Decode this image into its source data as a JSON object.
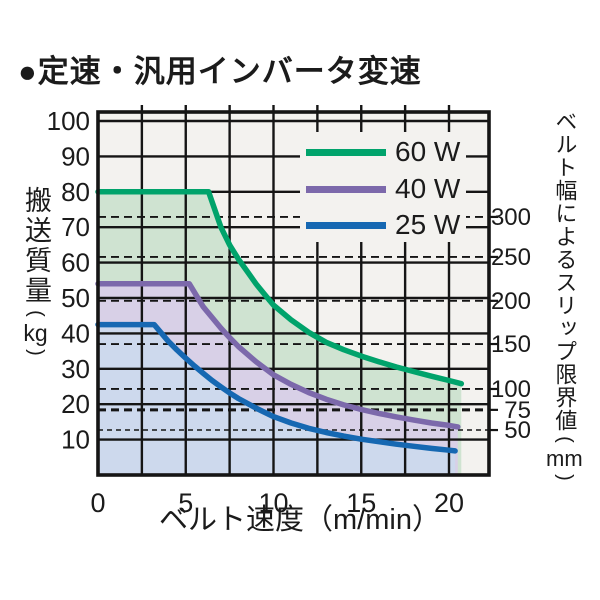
{
  "title": "●定速・汎用インバータ変速",
  "glyphs": {
    "paren_open": "(",
    "paren_close": ")"
  },
  "y_axis": {
    "label": "搬送質量",
    "unit": "kg",
    "ticks": [
      100,
      90,
      80,
      70,
      60,
      50,
      40,
      30,
      20,
      10
    ]
  },
  "x_axis": {
    "label": "ベルト速度（m/min）",
    "ticks": [
      0,
      5,
      10,
      15,
      20
    ]
  },
  "right_axis": {
    "label": "ベルト幅によるスリップ限界値",
    "unit": "mm",
    "ticks": [
      {
        "mm": 300,
        "kg": 72.9
      },
      {
        "mm": 250,
        "kg": 61.6
      },
      {
        "mm": 200,
        "kg": 49.2
      },
      {
        "mm": 150,
        "kg": 37.0
      },
      {
        "mm": 100,
        "kg": 24.3
      },
      {
        "mm": 75,
        "kg": 18.4
      },
      {
        "mm": 50,
        "kg": 12.7
      }
    ]
  },
  "legend": [
    {
      "label": "60 W",
      "color": "#00a36b"
    },
    {
      "label": "40 W",
      "color": "#7c69ab"
    },
    {
      "label": "25 W",
      "color": "#1668b2"
    }
  ],
  "colors": {
    "plot_bg": "#f3f2ef",
    "grid": "#151515",
    "text": "#1b1b1b"
  },
  "chart_data": {
    "type": "area",
    "title": "定速・汎用インバータ変速",
    "xlabel": "ベルト速度（m/min）",
    "ylabel": "搬送質量（kg）",
    "y2label": "ベルト幅によるスリップ限界値（mm）",
    "xlim": [
      0,
      22.3
    ],
    "ylim": [
      0,
      102.5
    ],
    "x_ticks": [
      0,
      5,
      10,
      15,
      20
    ],
    "x_grid_step": 2.5,
    "y_grid_step": 10,
    "grid": true,
    "legend_position": "top-right-inside",
    "series": [
      {
        "name": "60 W",
        "color": "#00a36b",
        "fill": "#cfe3d1",
        "points": [
          [
            0,
            80
          ],
          [
            6.3,
            80
          ],
          [
            7,
            70
          ],
          [
            7.5,
            65
          ],
          [
            8,
            61
          ],
          [
            8.5,
            57.5
          ],
          [
            9,
            54
          ],
          [
            9.5,
            51
          ],
          [
            10,
            48
          ],
          [
            11,
            43.8
          ],
          [
            12,
            40.3
          ],
          [
            13,
            37.5
          ],
          [
            14,
            35.4
          ],
          [
            15,
            33.6
          ],
          [
            16,
            32
          ],
          [
            17,
            30.5
          ],
          [
            18,
            29.2
          ],
          [
            19,
            27.9
          ],
          [
            20,
            26.7
          ],
          [
            20.7,
            25.8
          ]
        ]
      },
      {
        "name": "40 W",
        "color": "#7c69ab",
        "fill": "#d8d0e7",
        "points": [
          [
            0,
            54
          ],
          [
            5.2,
            54
          ],
          [
            6,
            47.5
          ],
          [
            6.5,
            44.5
          ],
          [
            7,
            41.5
          ],
          [
            7.5,
            38.8
          ],
          [
            8,
            36.3
          ],
          [
            9,
            32
          ],
          [
            10,
            28.3
          ],
          [
            11,
            25.6
          ],
          [
            12,
            23.3
          ],
          [
            13,
            21.4
          ],
          [
            14,
            19.8
          ],
          [
            15,
            18.5
          ],
          [
            16,
            17.4
          ],
          [
            17,
            16.4
          ],
          [
            18,
            15.5
          ],
          [
            19,
            14.7
          ],
          [
            20,
            14
          ],
          [
            20.5,
            13.6
          ]
        ]
      },
      {
        "name": "25 W",
        "color": "#1668b2",
        "fill": "#cdd9ed",
        "points": [
          [
            0,
            42.5
          ],
          [
            3.2,
            42.5
          ],
          [
            4,
            37.8
          ],
          [
            4.5,
            35.3
          ],
          [
            5,
            33
          ],
          [
            5.5,
            30.8
          ],
          [
            6,
            28.7
          ],
          [
            6.5,
            26.7
          ],
          [
            7,
            24.9
          ],
          [
            7.5,
            23.2
          ],
          [
            8,
            21.6
          ],
          [
            9,
            18.9
          ],
          [
            10,
            16.5
          ],
          [
            11,
            14.7
          ],
          [
            12,
            13.2
          ],
          [
            13,
            12
          ],
          [
            14,
            11
          ],
          [
            15,
            10.1
          ],
          [
            16,
            9.4
          ],
          [
            17,
            8.7
          ],
          [
            18,
            8.1
          ],
          [
            19,
            7.5
          ],
          [
            20,
            7
          ],
          [
            20.35,
            6.8
          ]
        ]
      }
    ],
    "slip_limit_dashed_lines": [
      {
        "mm": 300,
        "kg": 72.9
      },
      {
        "mm": 250,
        "kg": 61.6
      },
      {
        "mm": 200,
        "kg": 49.2
      },
      {
        "mm": 150,
        "kg": 37.0
      },
      {
        "mm": 100,
        "kg": 24.3
      },
      {
        "mm": 75,
        "kg": 18.4
      },
      {
        "mm": 50,
        "kg": 12.7
      }
    ]
  }
}
